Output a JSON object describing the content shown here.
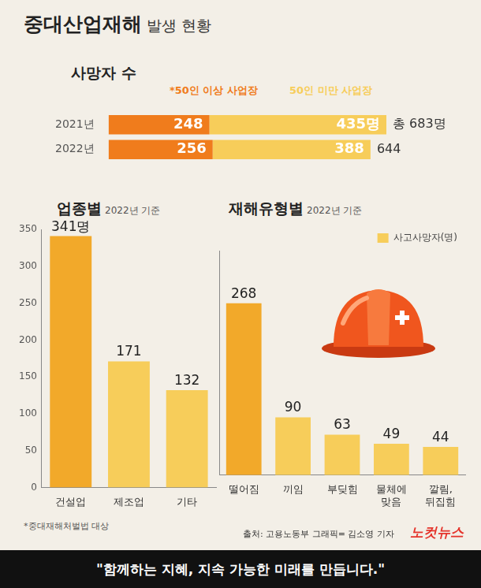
{
  "title": "중대산업재해",
  "subtitle": "발생 현황",
  "chart_data": [
    {
      "type": "bar",
      "title": "사망자 수",
      "orientation": "horizontal",
      "stacked": true,
      "categories": [
        "2021년",
        "2022년"
      ],
      "series": [
        {
          "name": "*50인 이상 사업장",
          "color": "#f07c1c",
          "values": [
            248,
            256
          ],
          "value_labels": [
            "248",
            "256"
          ]
        },
        {
          "name": "50인 미만 사업장",
          "color": "#f7cd5a",
          "values": [
            435,
            388
          ],
          "value_labels": [
            "435명",
            "388"
          ]
        }
      ],
      "totals": [
        683,
        644
      ],
      "total_labels": [
        "총 683명",
        "644"
      ],
      "xlim": [
        0,
        683
      ],
      "data_labels": true,
      "tick_labels": "y",
      "grid": false,
      "legend": "top"
    },
    {
      "type": "bar",
      "title": "업종별",
      "subtitle": "2022년 기준",
      "categories": [
        "건설업",
        "제조업",
        "기타"
      ],
      "values": [
        341,
        171,
        132
      ],
      "value_labels": [
        "341명",
        "171",
        "132"
      ],
      "colors": [
        "#f2a92a",
        "#f7cd5a",
        "#f7cd5a"
      ],
      "ylim": [
        0,
        350
      ],
      "yticks": [
        0,
        50,
        100,
        150,
        200,
        250,
        300,
        350
      ],
      "data_labels": true,
      "grid": false,
      "tick_labels": true
    },
    {
      "type": "bar",
      "title": "재해유형별",
      "subtitle": "2022년 기준",
      "categories": [
        "떨어짐",
        "끼임",
        "부딪힘",
        "물체에 맞음",
        "깔림, 뒤집힘"
      ],
      "series": [
        {
          "name": "사고사망자(명)",
          "color": "#f7cd5a",
          "values": [
            268,
            90,
            63,
            49,
            44
          ]
        }
      ],
      "colors": [
        "#f2a92a",
        "#f7cd5a",
        "#f7cd5a",
        "#f7cd5a",
        "#f7cd5a"
      ],
      "ylim": [
        0,
        350
      ],
      "data_labels": true,
      "grid": false,
      "tick_labels": "x",
      "legend": "top-right"
    }
  ],
  "footnote": "*중대재해처벌법 대상",
  "source": "출처: 고용노동부  그래픽= 김소영 기자",
  "brand": "노컷뉴스",
  "banner": "\"함께하는 지혜, 지속 가능한 미래를 만듭니다.\""
}
